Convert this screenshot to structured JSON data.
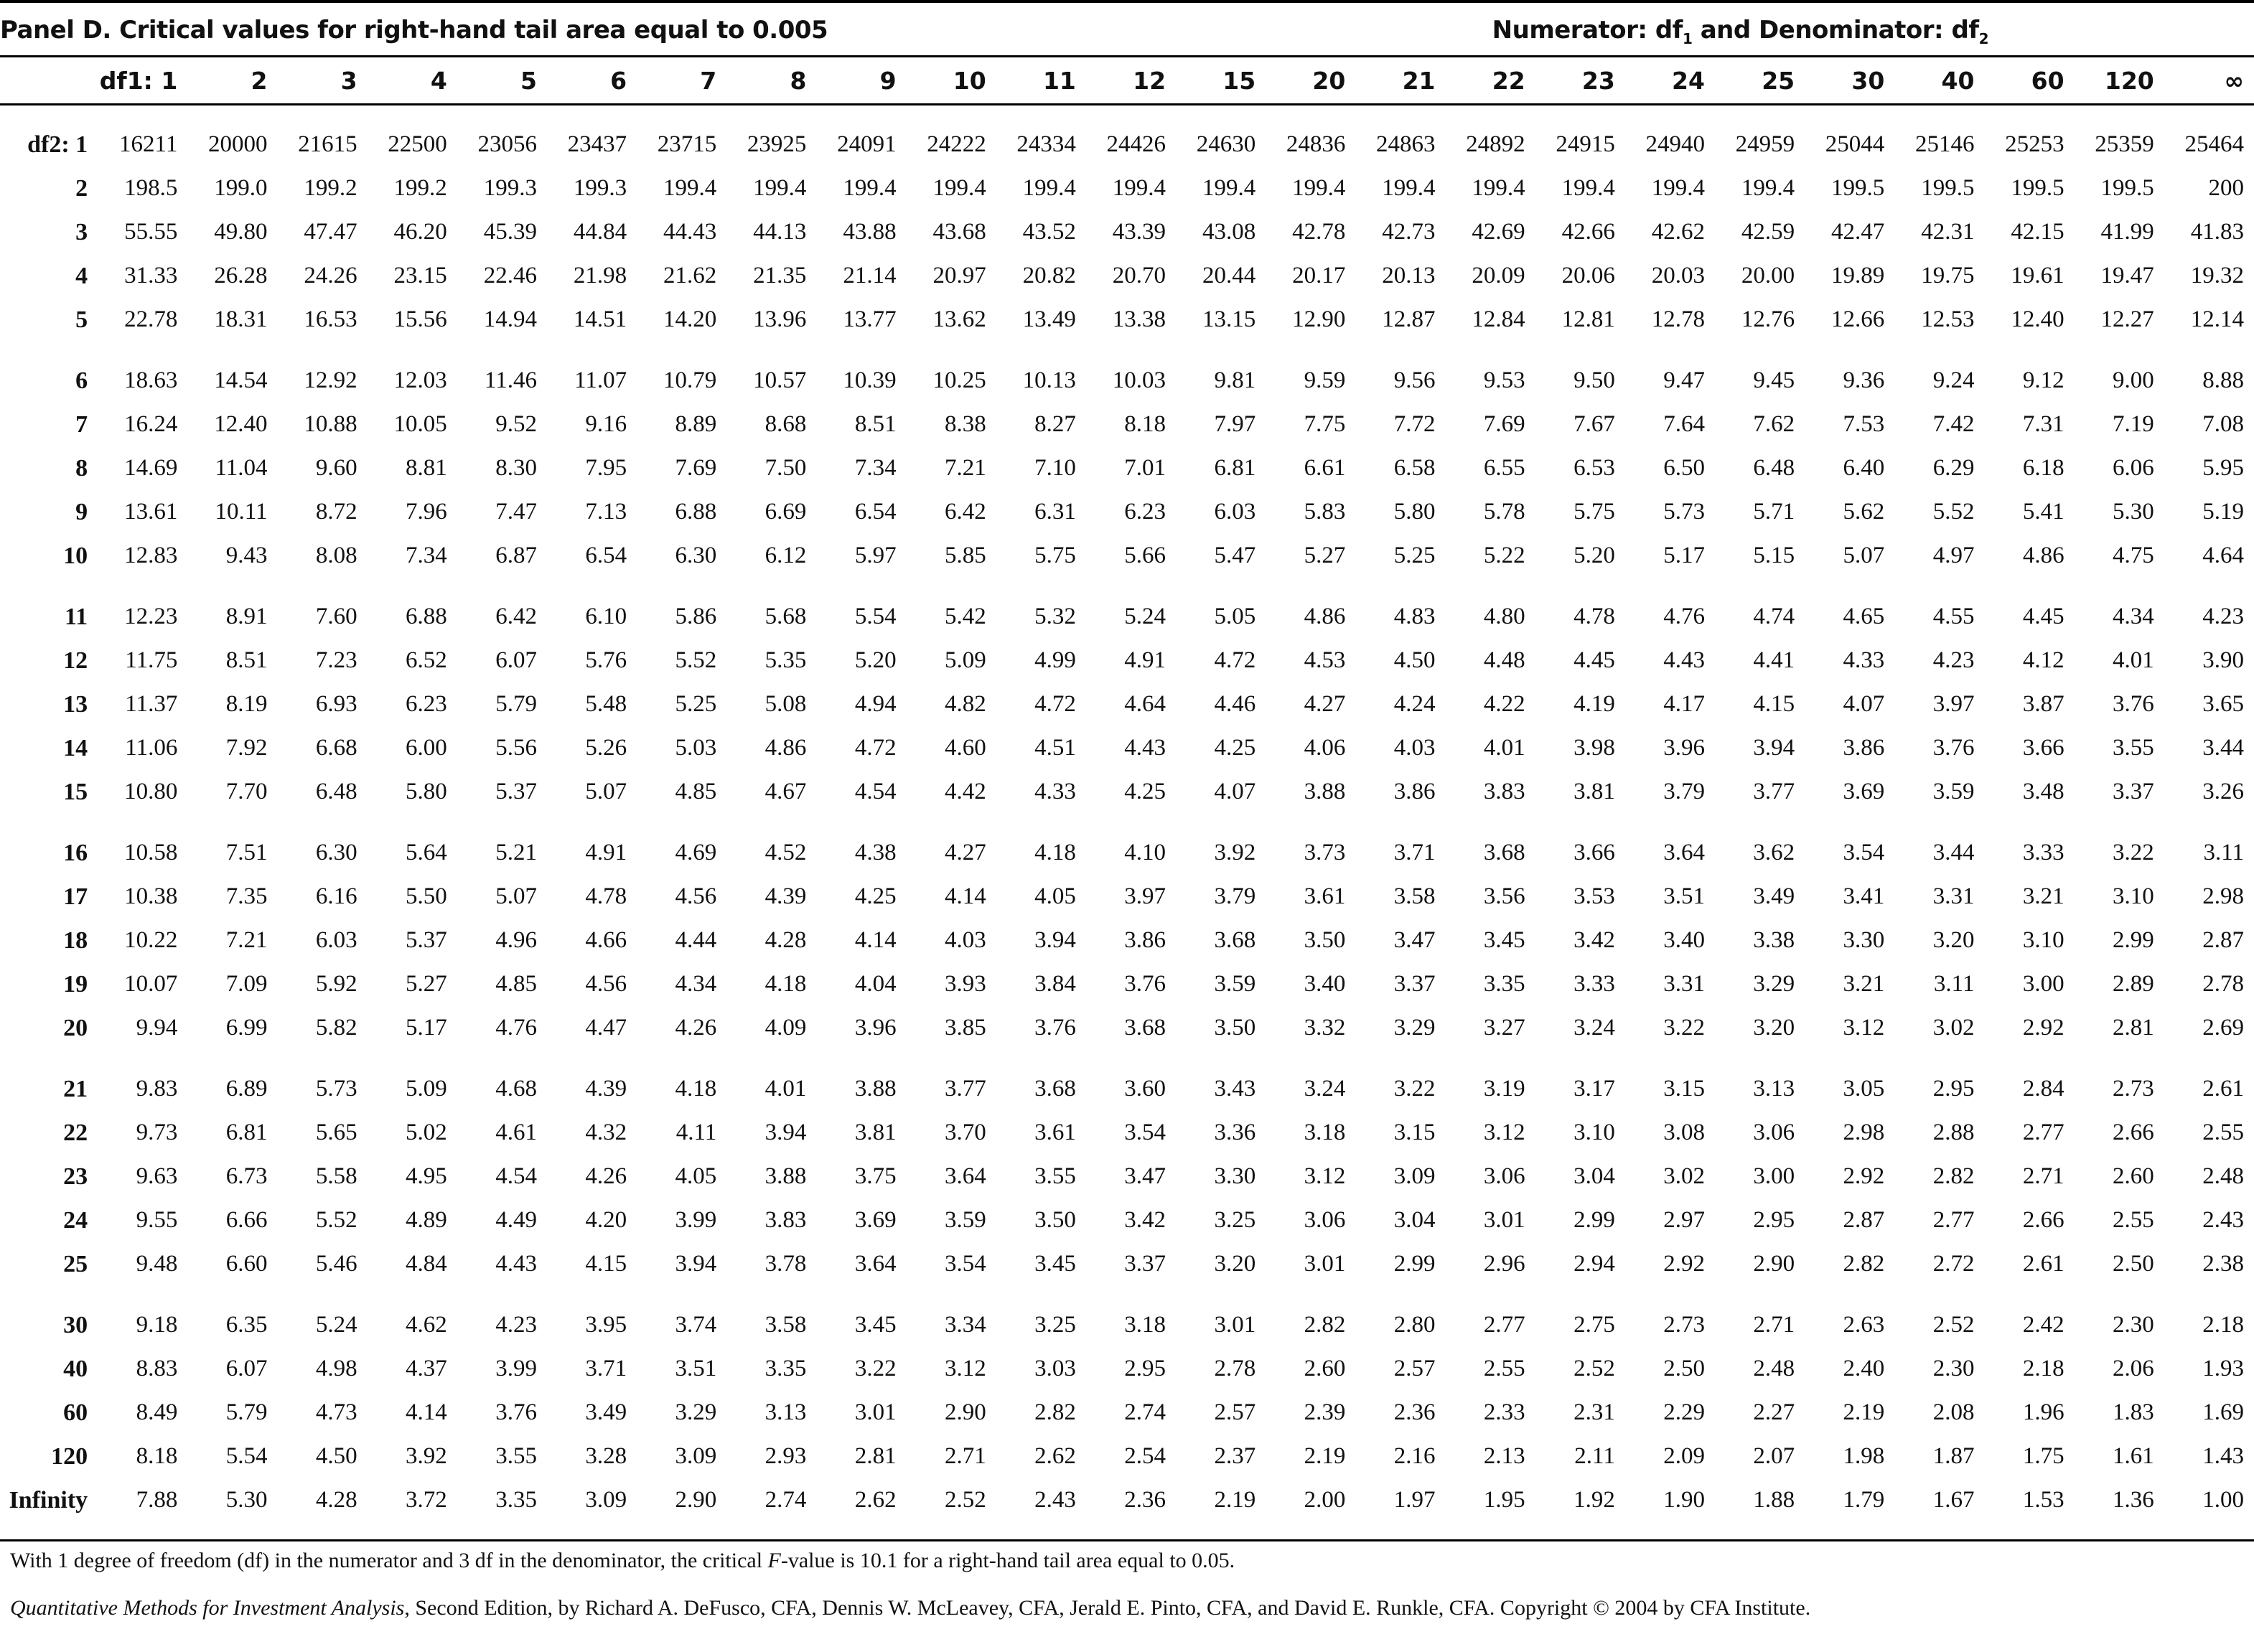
{
  "header": {
    "panel_title": "Panel D. Critical values for right-hand tail area equal to 0.005",
    "subtitle_prefix": "Numerator: df",
    "subtitle_middle": " and Denominator: df",
    "sub_1": "1",
    "sub_2": "2"
  },
  "table": {
    "corner_label": "df1: 1",
    "first_row_label": "df2: 1",
    "columns": [
      "2",
      "3",
      "4",
      "5",
      "6",
      "7",
      "8",
      "9",
      "10",
      "11",
      "12",
      "15",
      "20",
      "21",
      "22",
      "23",
      "24",
      "25",
      "30",
      "40",
      "60",
      "120",
      "∞"
    ],
    "groups": [
      [
        {
          "label": "df2: 1",
          "values": [
            "16211",
            "20000",
            "21615",
            "22500",
            "23056",
            "23437",
            "23715",
            "23925",
            "24091",
            "24222",
            "24334",
            "24426",
            "24630",
            "24836",
            "24863",
            "24892",
            "24915",
            "24940",
            "24959",
            "25044",
            "25146",
            "25253",
            "25359",
            "25464"
          ]
        },
        {
          "label": "2",
          "values": [
            "198.5",
            "199.0",
            "199.2",
            "199.2",
            "199.3",
            "199.3",
            "199.4",
            "199.4",
            "199.4",
            "199.4",
            "199.4",
            "199.4",
            "199.4",
            "199.4",
            "199.4",
            "199.4",
            "199.4",
            "199.4",
            "199.4",
            "199.5",
            "199.5",
            "199.5",
            "199.5",
            "200"
          ]
        },
        {
          "label": "3",
          "values": [
            "55.55",
            "49.80",
            "47.47",
            "46.20",
            "45.39",
            "44.84",
            "44.43",
            "44.13",
            "43.88",
            "43.68",
            "43.52",
            "43.39",
            "43.08",
            "42.78",
            "42.73",
            "42.69",
            "42.66",
            "42.62",
            "42.59",
            "42.47",
            "42.31",
            "42.15",
            "41.99",
            "41.83"
          ]
        },
        {
          "label": "4",
          "values": [
            "31.33",
            "26.28",
            "24.26",
            "23.15",
            "22.46",
            "21.98",
            "21.62",
            "21.35",
            "21.14",
            "20.97",
            "20.82",
            "20.70",
            "20.44",
            "20.17",
            "20.13",
            "20.09",
            "20.06",
            "20.03",
            "20.00",
            "19.89",
            "19.75",
            "19.61",
            "19.47",
            "19.32"
          ]
        },
        {
          "label": "5",
          "values": [
            "22.78",
            "18.31",
            "16.53",
            "15.56",
            "14.94",
            "14.51",
            "14.20",
            "13.96",
            "13.77",
            "13.62",
            "13.49",
            "13.38",
            "13.15",
            "12.90",
            "12.87",
            "12.84",
            "12.81",
            "12.78",
            "12.76",
            "12.66",
            "12.53",
            "12.40",
            "12.27",
            "12.14"
          ]
        }
      ],
      [
        {
          "label": "6",
          "values": [
            "18.63",
            "14.54",
            "12.92",
            "12.03",
            "11.46",
            "11.07",
            "10.79",
            "10.57",
            "10.39",
            "10.25",
            "10.13",
            "10.03",
            "9.81",
            "9.59",
            "9.56",
            "9.53",
            "9.50",
            "9.47",
            "9.45",
            "9.36",
            "9.24",
            "9.12",
            "9.00",
            "8.88"
          ]
        },
        {
          "label": "7",
          "values": [
            "16.24",
            "12.40",
            "10.88",
            "10.05",
            "9.52",
            "9.16",
            "8.89",
            "8.68",
            "8.51",
            "8.38",
            "8.27",
            "8.18",
            "7.97",
            "7.75",
            "7.72",
            "7.69",
            "7.67",
            "7.64",
            "7.62",
            "7.53",
            "7.42",
            "7.31",
            "7.19",
            "7.08"
          ]
        },
        {
          "label": "8",
          "values": [
            "14.69",
            "11.04",
            "9.60",
            "8.81",
            "8.30",
            "7.95",
            "7.69",
            "7.50",
            "7.34",
            "7.21",
            "7.10",
            "7.01",
            "6.81",
            "6.61",
            "6.58",
            "6.55",
            "6.53",
            "6.50",
            "6.48",
            "6.40",
            "6.29",
            "6.18",
            "6.06",
            "5.95"
          ]
        },
        {
          "label": "9",
          "values": [
            "13.61",
            "10.11",
            "8.72",
            "7.96",
            "7.47",
            "7.13",
            "6.88",
            "6.69",
            "6.54",
            "6.42",
            "6.31",
            "6.23",
            "6.03",
            "5.83",
            "5.80",
            "5.78",
            "5.75",
            "5.73",
            "5.71",
            "5.62",
            "5.52",
            "5.41",
            "5.30",
            "5.19"
          ]
        },
        {
          "label": "10",
          "values": [
            "12.83",
            "9.43",
            "8.08",
            "7.34",
            "6.87",
            "6.54",
            "6.30",
            "6.12",
            "5.97",
            "5.85",
            "5.75",
            "5.66",
            "5.47",
            "5.27",
            "5.25",
            "5.22",
            "5.20",
            "5.17",
            "5.15",
            "5.07",
            "4.97",
            "4.86",
            "4.75",
            "4.64"
          ]
        }
      ],
      [
        {
          "label": "11",
          "values": [
            "12.23",
            "8.91",
            "7.60",
            "6.88",
            "6.42",
            "6.10",
            "5.86",
            "5.68",
            "5.54",
            "5.42",
            "5.32",
            "5.24",
            "5.05",
            "4.86",
            "4.83",
            "4.80",
            "4.78",
            "4.76",
            "4.74",
            "4.65",
            "4.55",
            "4.45",
            "4.34",
            "4.23"
          ]
        },
        {
          "label": "12",
          "values": [
            "11.75",
            "8.51",
            "7.23",
            "6.52",
            "6.07",
            "5.76",
            "5.52",
            "5.35",
            "5.20",
            "5.09",
            "4.99",
            "4.91",
            "4.72",
            "4.53",
            "4.50",
            "4.48",
            "4.45",
            "4.43",
            "4.41",
            "4.33",
            "4.23",
            "4.12",
            "4.01",
            "3.90"
          ]
        },
        {
          "label": "13",
          "values": [
            "11.37",
            "8.19",
            "6.93",
            "6.23",
            "5.79",
            "5.48",
            "5.25",
            "5.08",
            "4.94",
            "4.82",
            "4.72",
            "4.64",
            "4.46",
            "4.27",
            "4.24",
            "4.22",
            "4.19",
            "4.17",
            "4.15",
            "4.07",
            "3.97",
            "3.87",
            "3.76",
            "3.65"
          ]
        },
        {
          "label": "14",
          "values": [
            "11.06",
            "7.92",
            "6.68",
            "6.00",
            "5.56",
            "5.26",
            "5.03",
            "4.86",
            "4.72",
            "4.60",
            "4.51",
            "4.43",
            "4.25",
            "4.06",
            "4.03",
            "4.01",
            "3.98",
            "3.96",
            "3.94",
            "3.86",
            "3.76",
            "3.66",
            "3.55",
            "3.44"
          ]
        },
        {
          "label": "15",
          "values": [
            "10.80",
            "7.70",
            "6.48",
            "5.80",
            "5.37",
            "5.07",
            "4.85",
            "4.67",
            "4.54",
            "4.42",
            "4.33",
            "4.25",
            "4.07",
            "3.88",
            "3.86",
            "3.83",
            "3.81",
            "3.79",
            "3.77",
            "3.69",
            "3.59",
            "3.48",
            "3.37",
            "3.26"
          ]
        }
      ],
      [
        {
          "label": "16",
          "values": [
            "10.58",
            "7.51",
            "6.30",
            "5.64",
            "5.21",
            "4.91",
            "4.69",
            "4.52",
            "4.38",
            "4.27",
            "4.18",
            "4.10",
            "3.92",
            "3.73",
            "3.71",
            "3.68",
            "3.66",
            "3.64",
            "3.62",
            "3.54",
            "3.44",
            "3.33",
            "3.22",
            "3.11"
          ]
        },
        {
          "label": "17",
          "values": [
            "10.38",
            "7.35",
            "6.16",
            "5.50",
            "5.07",
            "4.78",
            "4.56",
            "4.39",
            "4.25",
            "4.14",
            "4.05",
            "3.97",
            "3.79",
            "3.61",
            "3.58",
            "3.56",
            "3.53",
            "3.51",
            "3.49",
            "3.41",
            "3.31",
            "3.21",
            "3.10",
            "2.98"
          ]
        },
        {
          "label": "18",
          "values": [
            "10.22",
            "7.21",
            "6.03",
            "5.37",
            "4.96",
            "4.66",
            "4.44",
            "4.28",
            "4.14",
            "4.03",
            "3.94",
            "3.86",
            "3.68",
            "3.50",
            "3.47",
            "3.45",
            "3.42",
            "3.40",
            "3.38",
            "3.30",
            "3.20",
            "3.10",
            "2.99",
            "2.87"
          ]
        },
        {
          "label": "19",
          "values": [
            "10.07",
            "7.09",
            "5.92",
            "5.27",
            "4.85",
            "4.56",
            "4.34",
            "4.18",
            "4.04",
            "3.93",
            "3.84",
            "3.76",
            "3.59",
            "3.40",
            "3.37",
            "3.35",
            "3.33",
            "3.31",
            "3.29",
            "3.21",
            "3.11",
            "3.00",
            "2.89",
            "2.78"
          ]
        },
        {
          "label": "20",
          "values": [
            "9.94",
            "6.99",
            "5.82",
            "5.17",
            "4.76",
            "4.47",
            "4.26",
            "4.09",
            "3.96",
            "3.85",
            "3.76",
            "3.68",
            "3.50",
            "3.32",
            "3.29",
            "3.27",
            "3.24",
            "3.22",
            "3.20",
            "3.12",
            "3.02",
            "2.92",
            "2.81",
            "2.69"
          ]
        }
      ],
      [
        {
          "label": "21",
          "values": [
            "9.83",
            "6.89",
            "5.73",
            "5.09",
            "4.68",
            "4.39",
            "4.18",
            "4.01",
            "3.88",
            "3.77",
            "3.68",
            "3.60",
            "3.43",
            "3.24",
            "3.22",
            "3.19",
            "3.17",
            "3.15",
            "3.13",
            "3.05",
            "2.95",
            "2.84",
            "2.73",
            "2.61"
          ]
        },
        {
          "label": "22",
          "values": [
            "9.73",
            "6.81",
            "5.65",
            "5.02",
            "4.61",
            "4.32",
            "4.11",
            "3.94",
            "3.81",
            "3.70",
            "3.61",
            "3.54",
            "3.36",
            "3.18",
            "3.15",
            "3.12",
            "3.10",
            "3.08",
            "3.06",
            "2.98",
            "2.88",
            "2.77",
            "2.66",
            "2.55"
          ]
        },
        {
          "label": "23",
          "values": [
            "9.63",
            "6.73",
            "5.58",
            "4.95",
            "4.54",
            "4.26",
            "4.05",
            "3.88",
            "3.75",
            "3.64",
            "3.55",
            "3.47",
            "3.30",
            "3.12",
            "3.09",
            "3.06",
            "3.04",
            "3.02",
            "3.00",
            "2.92",
            "2.82",
            "2.71",
            "2.60",
            "2.48"
          ]
        },
        {
          "label": "24",
          "values": [
            "9.55",
            "6.66",
            "5.52",
            "4.89",
            "4.49",
            "4.20",
            "3.99",
            "3.83",
            "3.69",
            "3.59",
            "3.50",
            "3.42",
            "3.25",
            "3.06",
            "3.04",
            "3.01",
            "2.99",
            "2.97",
            "2.95",
            "2.87",
            "2.77",
            "2.66",
            "2.55",
            "2.43"
          ]
        },
        {
          "label": "25",
          "values": [
            "9.48",
            "6.60",
            "5.46",
            "4.84",
            "4.43",
            "4.15",
            "3.94",
            "3.78",
            "3.64",
            "3.54",
            "3.45",
            "3.37",
            "3.20",
            "3.01",
            "2.99",
            "2.96",
            "2.94",
            "2.92",
            "2.90",
            "2.82",
            "2.72",
            "2.61",
            "2.50",
            "2.38"
          ]
        }
      ],
      [
        {
          "label": "30",
          "values": [
            "9.18",
            "6.35",
            "5.24",
            "4.62",
            "4.23",
            "3.95",
            "3.74",
            "3.58",
            "3.45",
            "3.34",
            "3.25",
            "3.18",
            "3.01",
            "2.82",
            "2.80",
            "2.77",
            "2.75",
            "2.73",
            "2.71",
            "2.63",
            "2.52",
            "2.42",
            "2.30",
            "2.18"
          ]
        },
        {
          "label": "40",
          "values": [
            "8.83",
            "6.07",
            "4.98",
            "4.37",
            "3.99",
            "3.71",
            "3.51",
            "3.35",
            "3.22",
            "3.12",
            "3.03",
            "2.95",
            "2.78",
            "2.60",
            "2.57",
            "2.55",
            "2.52",
            "2.50",
            "2.48",
            "2.40",
            "2.30",
            "2.18",
            "2.06",
            "1.93"
          ]
        },
        {
          "label": "60",
          "values": [
            "8.49",
            "5.79",
            "4.73",
            "4.14",
            "3.76",
            "3.49",
            "3.29",
            "3.13",
            "3.01",
            "2.90",
            "2.82",
            "2.74",
            "2.57",
            "2.39",
            "2.36",
            "2.33",
            "2.31",
            "2.29",
            "2.27",
            "2.19",
            "2.08",
            "1.96",
            "1.83",
            "1.69"
          ]
        },
        {
          "label": "120",
          "values": [
            "8.18",
            "5.54",
            "4.50",
            "3.92",
            "3.55",
            "3.28",
            "3.09",
            "2.93",
            "2.81",
            "2.71",
            "2.62",
            "2.54",
            "2.37",
            "2.19",
            "2.16",
            "2.13",
            "2.11",
            "2.09",
            "2.07",
            "1.98",
            "1.87",
            "1.75",
            "1.61",
            "1.43"
          ]
        },
        {
          "label": "Infinity",
          "values": [
            "7.88",
            "5.30",
            "4.28",
            "3.72",
            "3.35",
            "3.09",
            "2.90",
            "2.74",
            "2.62",
            "2.52",
            "2.43",
            "2.36",
            "2.19",
            "2.00",
            "1.97",
            "1.95",
            "1.92",
            "1.90",
            "1.88",
            "1.79",
            "1.67",
            "1.53",
            "1.36",
            "1.00"
          ]
        }
      ]
    ]
  },
  "footnote": {
    "before_f": "With 1 degree of freedom (df) in the numerator and 3 df in the denominator, the critical ",
    "f_letter": "F",
    "after_f": "-value is 10.1 for a right-hand tail area equal to 0.05."
  },
  "source": {
    "book_title": "Quantitative Methods for Investment Analysis",
    "rest": ", Second Edition, by Richard A. DeFusco, CFA, Dennis W. McLeavey, CFA, Jerald E. Pinto, CFA, and David E. Runkle, CFA. Copyright © 2004 by CFA Institute."
  }
}
